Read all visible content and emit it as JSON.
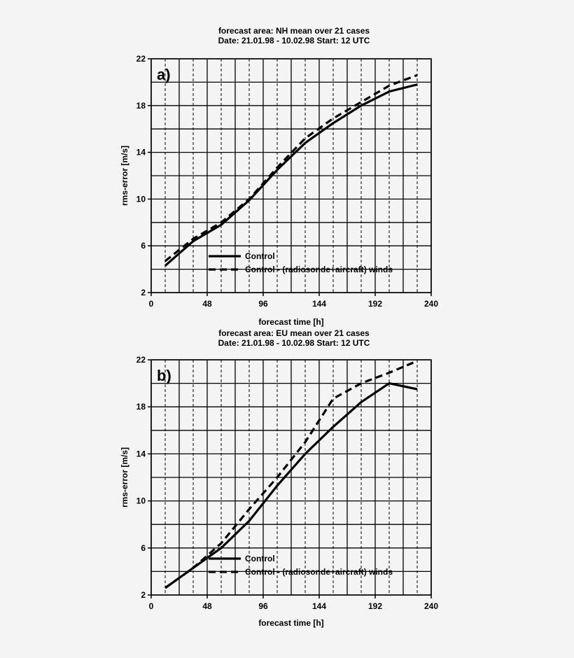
{
  "chart_data": [
    {
      "type": "line",
      "panel_label": "a)",
      "header_line1": "forecast area: NH      mean over 21 cases",
      "header_line2": "Date: 21.01.98 - 10.02.98   Start: 12 UTC",
      "xlabel": "forecast time [h]",
      "ylabel": "rms-error [m/s]",
      "xlim": [
        0,
        240
      ],
      "ylim": [
        2,
        22
      ],
      "xticks": [
        0,
        48,
        96,
        144,
        192,
        240
      ],
      "yticks": [
        2,
        6,
        10,
        14,
        18,
        22
      ],
      "grid": true,
      "legend_position": "lower-right",
      "series": [
        {
          "name": "Control",
          "style": "solid",
          "x": [
            12,
            36,
            60,
            84,
            108,
            132,
            156,
            180,
            204,
            228
          ],
          "y": [
            4.3,
            6.4,
            7.8,
            9.9,
            12.5,
            14.8,
            16.5,
            18.0,
            19.2,
            19.8
          ]
        },
        {
          "name": "Control - (radiosonde+aircraft) winds",
          "style": "dashed",
          "x": [
            12,
            36,
            60,
            84,
            108,
            132,
            156,
            180,
            204,
            228
          ],
          "y": [
            4.7,
            6.6,
            8.0,
            10.0,
            12.7,
            15.2,
            16.9,
            18.3,
            19.7,
            20.6
          ]
        }
      ]
    },
    {
      "type": "line",
      "panel_label": "b)",
      "header_line1": "forecast area: EU      mean over 21 cases",
      "header_line2": "Date: 21.01.98 - 10.02.98   Start: 12 UTC",
      "xlabel": "forecast time [h]",
      "ylabel": "rms-error [m/s]",
      "xlim": [
        0,
        240
      ],
      "ylim": [
        2,
        22
      ],
      "xticks": [
        0,
        48,
        96,
        144,
        192,
        240
      ],
      "yticks": [
        2,
        6,
        10,
        14,
        18,
        22
      ],
      "grid": true,
      "legend_position": "lower-right",
      "series": [
        {
          "name": "Control",
          "style": "solid",
          "x": [
            12,
            36,
            60,
            84,
            108,
            132,
            156,
            180,
            204,
            228
          ],
          "y": [
            2.6,
            4.3,
            6.0,
            8.3,
            11.3,
            14.0,
            16.3,
            18.4,
            20.0,
            19.5
          ]
        },
        {
          "name": "Control - (radiosonde+aircraft) winds",
          "style": "dashed",
          "x": [
            12,
            36,
            60,
            84,
            108,
            132,
            156,
            180,
            204,
            228
          ],
          "y": [
            2.6,
            4.3,
            6.4,
            9.3,
            12.0,
            15.0,
            18.7,
            20.0,
            20.9,
            21.9
          ]
        }
      ]
    }
  ]
}
